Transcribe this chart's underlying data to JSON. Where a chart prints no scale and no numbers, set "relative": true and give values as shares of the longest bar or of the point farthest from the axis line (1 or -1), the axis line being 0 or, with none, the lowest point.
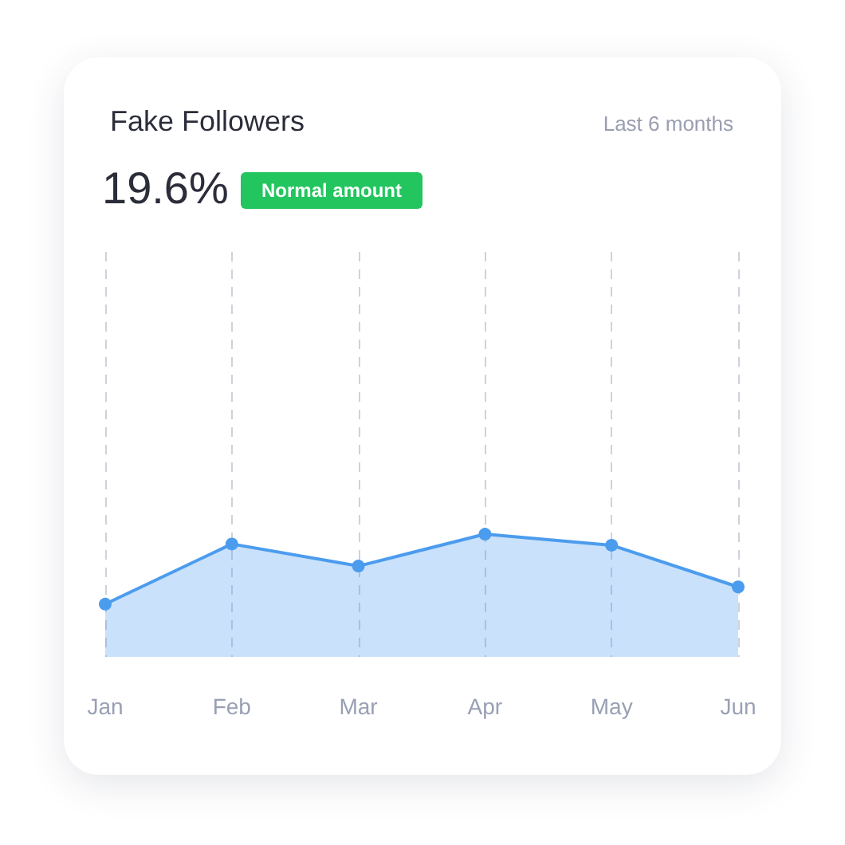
{
  "chart_data": {
    "type": "area",
    "title": "Fake Followers",
    "subtitle": "Last 6 months",
    "annotations": [
      "19.6%",
      "Normal amount"
    ],
    "categories": [
      "Jan",
      "Feb",
      "Mar",
      "Apr",
      "May",
      "Jun"
    ],
    "series": [
      {
        "color": "#4c9cee",
        "values": [
          0.43,
          0.92,
          0.74,
          1,
          0.91,
          0.57
        ]
      }
    ],
    "relative": true,
    "grid": "x",
    "marker": "circle",
    "line_style": "solid"
  }
}
